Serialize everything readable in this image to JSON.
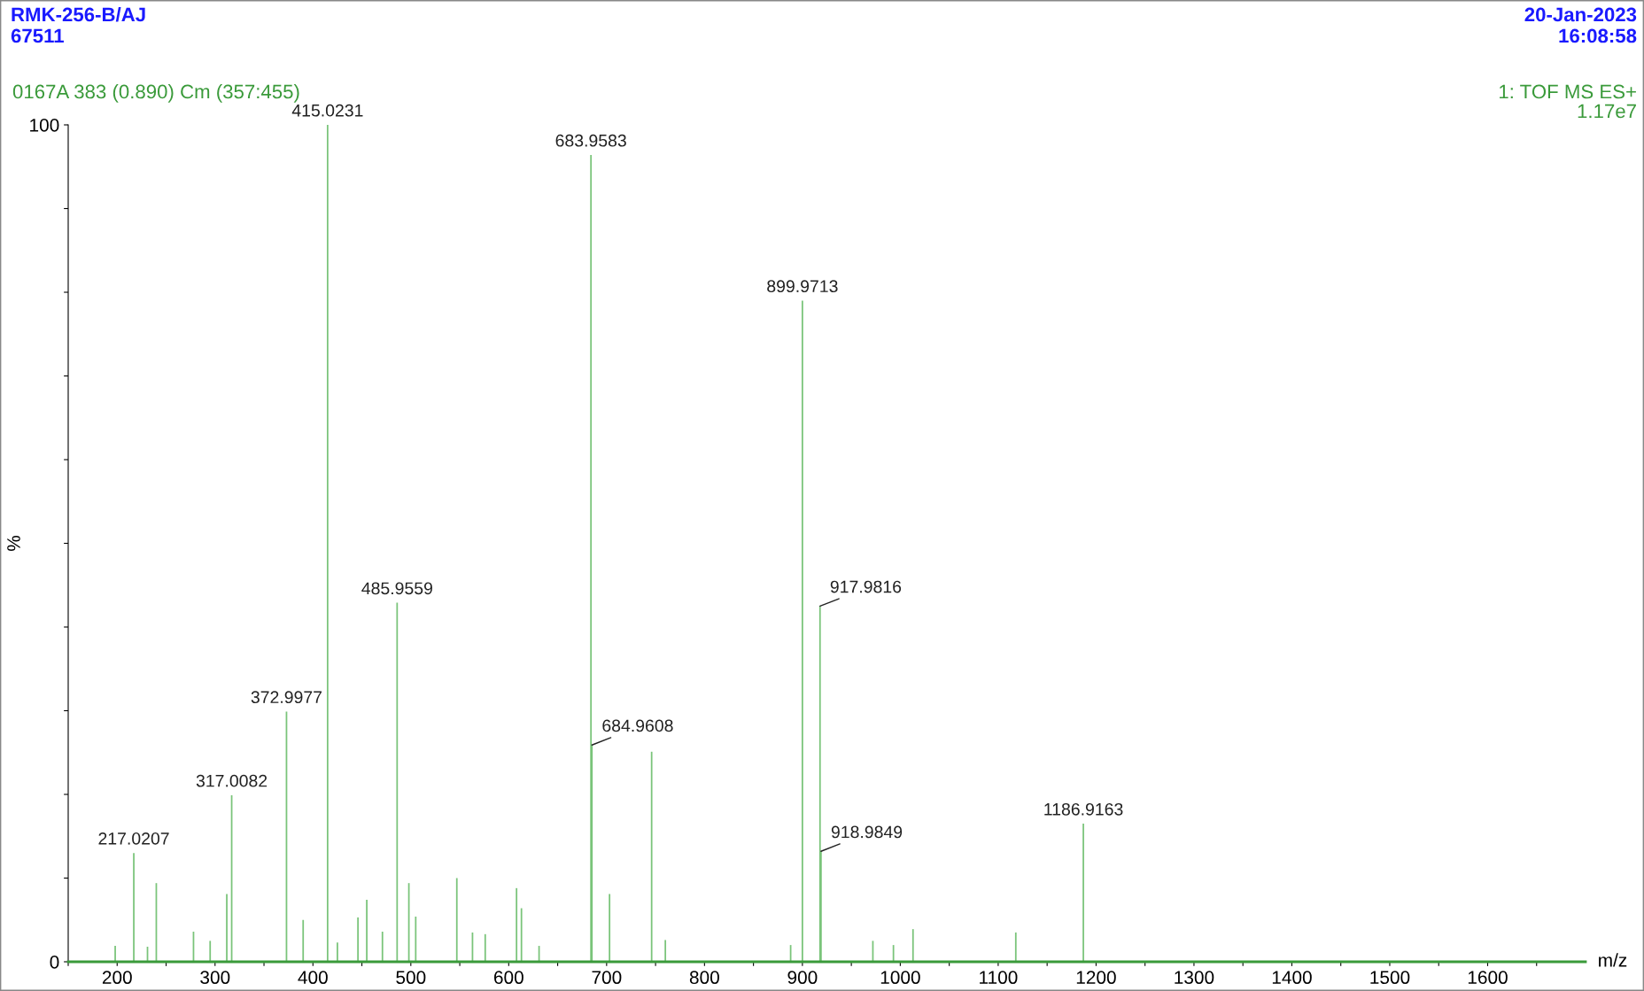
{
  "chart_data": {
    "type": "bar",
    "title": "RMK-256-B/AJ",
    "subtitle": "67511",
    "xlabel": "m/z",
    "ylabel": "%",
    "annotations": [
      "20-Jan-2023",
      "16:08:58",
      "0167A 383 (0.890) Cm (357:455)",
      "1: TOF MS ES+",
      "1.17e7",
      {
        "text": "415.0231",
        "x": 415.0,
        "y": 100
      },
      {
        "text": "683.9583",
        "x": 684.0,
        "y": 96.4
      },
      {
        "text": "899.9713",
        "x": 900.0,
        "y": 79.0
      },
      {
        "text": "917.9816",
        "x": 918.0,
        "y": 42.5
      },
      {
        "text": "485.9559",
        "x": 486.0,
        "y": 42.9
      },
      {
        "text": "372.9977",
        "x": 373.0,
        "y": 29.9
      },
      {
        "text": "684.9608",
        "x": 685.0,
        "y": 25.9
      },
      {
        "text": "317.0082",
        "x": 317.0,
        "y": 19.9
      },
      {
        "text": "1186.9163",
        "x": 1187.0,
        "y": 16.5
      },
      {
        "text": "918.9849",
        "x": 919.0,
        "y": 13.2
      },
      {
        "text": "217.0207",
        "x": 217.0,
        "y": 13.0
      }
    ],
    "x": [
      198,
      217,
      231,
      240,
      278,
      295,
      312,
      317,
      373,
      390,
      415,
      425,
      446,
      455,
      471,
      486,
      498,
      505,
      547,
      563,
      576,
      608,
      613,
      631,
      684,
      685,
      703,
      746,
      760,
      888,
      900,
      918,
      919,
      972,
      993,
      1013,
      1118,
      1187
    ],
    "series": [
      {
        "color": "#7ac47a",
        "values": [
          1.9,
          13.0,
          1.8,
          9.4,
          3.6,
          2.5,
          8.1,
          19.9,
          29.9,
          5.0,
          100,
          2.3,
          5.3,
          7.4,
          3.6,
          42.9,
          9.4,
          5.4,
          10.0,
          3.5,
          3.3,
          8.8,
          6.4,
          1.9,
          96.4,
          25.9,
          8.1,
          25.1,
          2.6,
          2.0,
          79.0,
          42.5,
          13.2,
          2.5,
          2.0,
          3.9,
          3.5,
          16.5
        ]
      }
    ],
    "xlim": [
      150,
      1700
    ],
    "xticks": [
      200,
      300,
      400,
      500,
      600,
      700,
      800,
      900,
      1000,
      1100,
      1200,
      1300,
      1400,
      1500,
      1600,
      {
        "value": 150,
        "label": null
      },
      {
        "value": 250,
        "label": null
      },
      {
        "value": 350,
        "label": null
      },
      {
        "value": 450,
        "label": null
      },
      {
        "value": 550,
        "label": null
      },
      {
        "value": 650,
        "label": null
      },
      {
        "value": 750,
        "label": null
      },
      {
        "value": 850,
        "label": null
      },
      {
        "value": 950,
        "label": null
      },
      {
        "value": 1050,
        "label": null
      },
      {
        "value": 1150,
        "label": null
      },
      {
        "value": 1250,
        "label": null
      },
      {
        "value": 1350,
        "label": null
      },
      {
        "value": 1450,
        "label": null
      },
      {
        "value": 1550,
        "label": null
      },
      {
        "value": 1650,
        "label": null
      }
    ],
    "ylim": [
      0,
      100
    ],
    "yticks": [
      0,
      {
        "value": 10,
        "label": null
      },
      {
        "value": 20,
        "label": null
      },
      {
        "value": 30,
        "label": null
      },
      {
        "value": 40,
        "label": null
      },
      {
        "value": 50,
        "label": null
      },
      {
        "value": 60,
        "label": null
      },
      {
        "value": 70,
        "label": null
      },
      {
        "value": 80,
        "label": null
      },
      {
        "value": 90,
        "label": null
      },
      100
    ]
  }
}
